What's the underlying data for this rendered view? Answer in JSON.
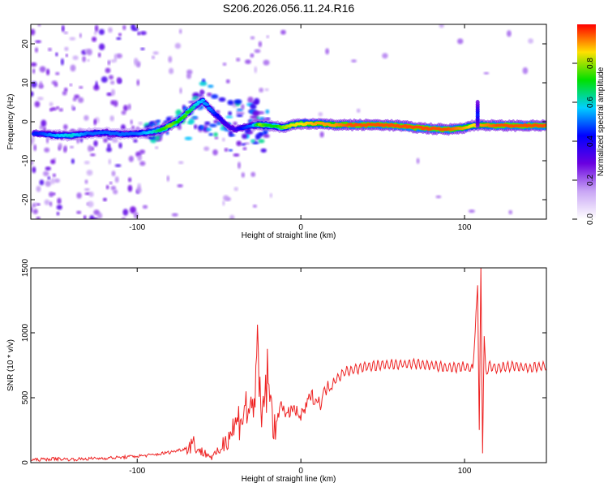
{
  "title": "S206.2026.056.11.24.R16",
  "chart_data": [
    {
      "type": "heatmap",
      "xlabel": "Height of straight line (km)",
      "ylabel": "Frequency (Hz)",
      "xlim": [
        -165,
        150
      ],
      "ylim": [
        -25,
        25
      ],
      "xticks": [
        -100,
        0,
        100
      ],
      "xtick_labels": [
        "-100",
        "0",
        "100"
      ],
      "yticks": [
        -20,
        -10,
        0,
        10,
        20
      ],
      "ytick_labels": [
        "-20",
        "-10",
        "0",
        "10",
        "20"
      ],
      "colorbar": {
        "label": "Normalized spectral amplitude",
        "range": [
          0,
          1
        ],
        "ticks": [
          0,
          0.2,
          0.4,
          0.6,
          0.8
        ],
        "tick_labels": [
          "0.0",
          "0.2",
          "0.4",
          "0.6",
          "0.8"
        ],
        "colors": [
          "#ffffff",
          "#c9a6f5",
          "#6a00e0",
          "#0000ff",
          "#00d0ff",
          "#00e000",
          "#ffe000",
          "#ff0000"
        ]
      },
      "trace": {
        "x": [
          -160,
          -150,
          -140,
          -130,
          -120,
          -110,
          -100,
          -90,
          -85,
          -80,
          -75,
          -70,
          -65,
          -60,
          -55,
          -50,
          -45,
          -40,
          -35,
          -30,
          -25,
          -20,
          -15,
          -10,
          -5,
          0,
          10,
          20,
          30,
          40,
          50,
          60,
          70,
          80,
          90,
          100,
          105,
          110,
          120,
          130,
          140,
          150
        ],
        "y": [
          -3,
          -3.5,
          -3.5,
          -3,
          -2.8,
          -3.2,
          -3,
          -2.5,
          -2,
          -1,
          0,
          2,
          4,
          5.5,
          3,
          1,
          -1,
          -2,
          -1.5,
          -1,
          -0.8,
          -1,
          -1.2,
          -1.5,
          -0.8,
          -0.5,
          -0.5,
          -0.8,
          -0.8,
          -0.8,
          -0.8,
          -1,
          -1.5,
          -1.8,
          -2,
          -1.5,
          -1,
          -0.8,
          -1,
          -1,
          -1,
          -1
        ],
        "amplitude": [
          0.45,
          0.55,
          0.6,
          0.5,
          0.5,
          0.5,
          0.5,
          0.6,
          0.7,
          0.8,
          0.7,
          0.75,
          0.6,
          0.55,
          0.5,
          0.4,
          0.35,
          0.35,
          0.45,
          0.5,
          0.8,
          0.7,
          0.7,
          0.8,
          0.85,
          0.85,
          0.9,
          0.9,
          0.95,
          0.95,
          0.95,
          0.95,
          0.95,
          0.95,
          0.95,
          0.9,
          0.85,
          0.9,
          0.95,
          0.95,
          0.95,
          0.95
        ]
      }
    },
    {
      "type": "line",
      "xlabel": "Height of straight line (km)",
      "ylabel": "SNR (10 * v/v)",
      "xlim": [
        -165,
        150
      ],
      "ylim": [
        0,
        1500
      ],
      "xticks": [
        -100,
        0,
        100
      ],
      "xtick_labels": [
        "-100",
        "0",
        "100"
      ],
      "yticks": [
        0,
        500,
        1000,
        1500
      ],
      "ytick_labels": [
        "0",
        "500",
        "1000",
        "1500"
      ],
      "color": "#ee2222",
      "series": [
        {
          "name": "SNR",
          "x": [
            -165,
            -150,
            -140,
            -130,
            -120,
            -110,
            -100,
            -90,
            -80,
            -70,
            -66,
            -62,
            -58,
            -54,
            -50,
            -46,
            -42,
            -38,
            -34,
            -30,
            -27,
            -24,
            -21,
            -18,
            -15,
            -12,
            -9,
            -6,
            -3,
            0,
            3,
            6,
            9,
            12,
            15,
            18,
            21,
            24,
            27,
            30,
            40,
            50,
            60,
            70,
            80,
            90,
            100,
            105,
            108,
            109,
            110,
            111,
            112,
            113,
            115,
            120,
            130,
            140,
            150
          ],
          "values": [
            20,
            30,
            25,
            30,
            35,
            40,
            50,
            60,
            80,
            110,
            160,
            90,
            70,
            40,
            90,
            180,
            250,
            330,
            420,
            380,
            800,
            300,
            650,
            400,
            260,
            500,
            330,
            420,
            390,
            350,
            420,
            520,
            490,
            460,
            560,
            600,
            640,
            670,
            700,
            710,
            740,
            750,
            760,
            760,
            750,
            730,
            740,
            720,
            1350,
            250,
            1500,
            100,
            950,
            700,
            740,
            730,
            740,
            730,
            740
          ]
        }
      ]
    }
  ]
}
